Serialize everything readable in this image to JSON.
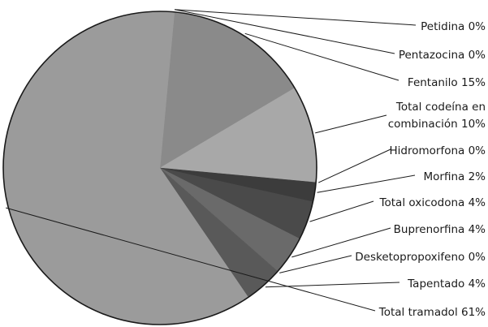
{
  "chart_data": {
    "type": "pie",
    "title": "",
    "slices": [
      {
        "label_lines": [
          "Petidina 0%"
        ],
        "value": 0,
        "color": "#7a7a7a"
      },
      {
        "label_lines": [
          "Pentazocina 0%"
        ],
        "value": 0,
        "color": "#7a7a7a"
      },
      {
        "label_lines": [
          "Fentanilo 15%"
        ],
        "value": 15,
        "color": "#8a8a8a"
      },
      {
        "label_lines": [
          "Total codeína en",
          "combinación 10%"
        ],
        "value": 10,
        "color": "#a8a8a8"
      },
      {
        "label_lines": [
          "Hidromorfona 0%"
        ],
        "value": 0,
        "color": "#2a2a2a"
      },
      {
        "label_lines": [
          "Morfina 2%"
        ],
        "value": 2,
        "color": "#3c3c3c"
      },
      {
        "label_lines": [
          "Total oxicodona 4%"
        ],
        "value": 4,
        "color": "#4a4a4a"
      },
      {
        "label_lines": [
          "Buprenorfina 4%"
        ],
        "value": 4,
        "color": "#6a6a6a"
      },
      {
        "label_lines": [
          "Desketopropoxifeno 0%"
        ],
        "value": 0,
        "color": "#6a6a6a"
      },
      {
        "label_lines": [
          "Tapentado 4%"
        ],
        "value": 4,
        "color": "#595959"
      },
      {
        "label_lines": [
          "Total tramadol 61%"
        ],
        "value": 61,
        "color": "#9b9b9b"
      }
    ],
    "outline_color": "#1a1a1a",
    "legend_placement": "right, with leader lines"
  }
}
